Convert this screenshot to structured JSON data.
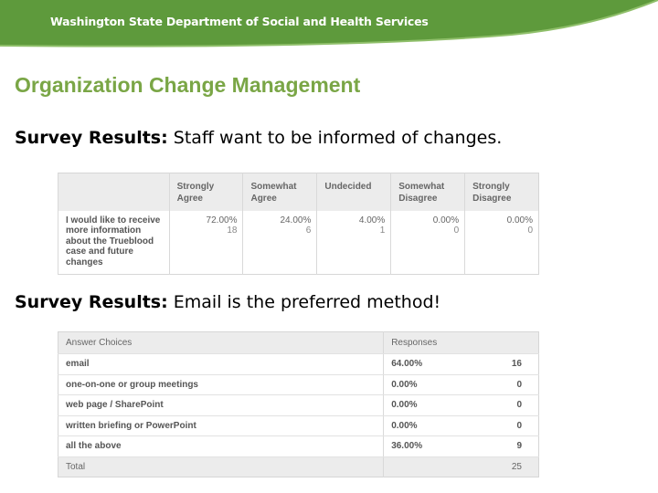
{
  "header": {
    "org": "Washington State Department of Social and Health Services"
  },
  "title": "Organization Change Management",
  "survey1": {
    "lead": "Survey Results:",
    "text": " Staff want to be informed of changes."
  },
  "likert": {
    "columns": [
      "Strongly Agree",
      "Somewhat Agree",
      "Undecided",
      "Somewhat Disagree",
      "Strongly Disagree"
    ],
    "question": "I would like to receive more information about the Trueblood case and future changes",
    "percents": [
      "72.00%",
      "24.00%",
      "4.00%",
      "0.00%",
      "0.00%"
    ],
    "counts": [
      "18",
      "6",
      "1",
      "0",
      "0"
    ]
  },
  "survey2": {
    "lead": "Survey Results:",
    "text": " Email is the preferred method!"
  },
  "answers": {
    "header_choice": "Answer Choices",
    "header_responses": "Responses",
    "rows": [
      {
        "choice": "email",
        "percent": "64.00%",
        "count": "16"
      },
      {
        "choice": "one-on-one or group meetings",
        "percent": "0.00%",
        "count": "0"
      },
      {
        "choice": "web page / SharePoint",
        "percent": "0.00%",
        "count": "0"
      },
      {
        "choice": "written briefing or PowerPoint",
        "percent": "0.00%",
        "count": "0"
      },
      {
        "choice": "all the above",
        "percent": "36.00%",
        "count": "9"
      }
    ],
    "total_label": "Total",
    "total_count": "25"
  },
  "colors": {
    "banner": "#5e9a3c",
    "title": "#7aa646"
  }
}
